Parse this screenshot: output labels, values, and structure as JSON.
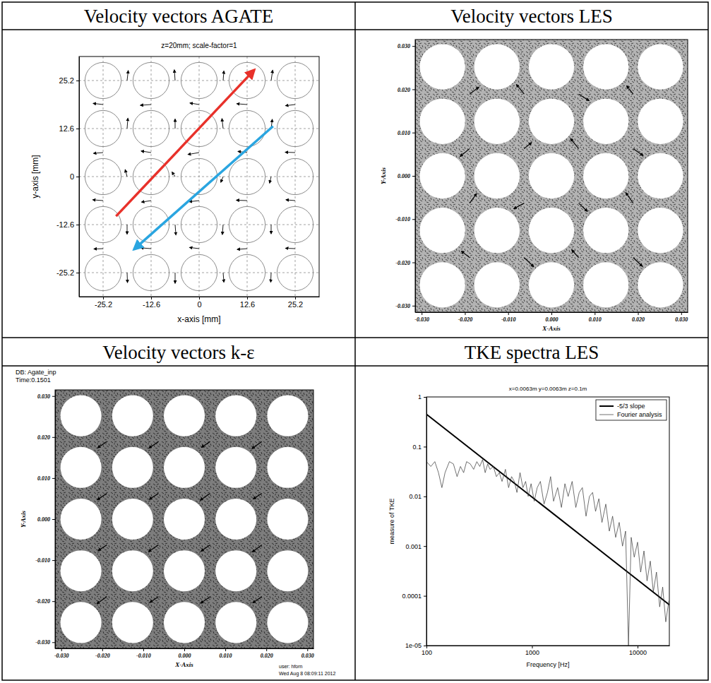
{
  "chart_data": [
    {
      "type": "vector_field",
      "title": "Velocity vectors AGATE",
      "subtitle": "z=20mm; scale-factor=1",
      "x_label": "x-axis [mm]",
      "y_label": "y-axis [mm]",
      "xlim": [
        -31.5,
        31.5
      ],
      "ylim": [
        -31.5,
        31.5
      ],
      "xticks": [
        -25.2,
        -12.6,
        0,
        12.6,
        25.2
      ],
      "yticks": [
        -25.2,
        -12.6,
        0,
        12.6,
        25.2
      ],
      "grid": true,
      "rods": {
        "x": [
          -25.2,
          -12.6,
          0,
          12.6,
          25.2,
          -25.2,
          -12.6,
          0,
          12.6,
          25.2,
          -25.2,
          -12.6,
          0,
          12.6,
          25.2,
          -25.2,
          -12.6,
          0,
          12.6,
          25.2,
          -25.2,
          -12.6,
          0,
          12.6,
          25.2
        ],
        "y": [
          25.2,
          25.2,
          25.2,
          25.2,
          25.2,
          12.6,
          12.6,
          12.6,
          12.6,
          12.6,
          0,
          0,
          0,
          0,
          0,
          -12.6,
          -12.6,
          -12.6,
          -12.6,
          -12.6,
          -25.2,
          -25.2,
          -25.2,
          -25.2,
          -25.2
        ],
        "diameter": 9.5
      },
      "vectors": {
        "x": [
          -18.9,
          -6.3,
          6.3,
          18.9,
          -18.9,
          -6.3,
          6.3,
          18.9,
          -18.9,
          -6.3,
          6.3,
          18.9,
          -18.9,
          -6.3,
          6.3,
          18.9,
          -18.9,
          -6.3,
          6.3,
          18.9,
          -25.2,
          -12.6,
          0,
          12.6,
          25.2,
          -25.2,
          -12.6,
          0,
          12.6,
          25.2,
          -25.2,
          -12.6,
          0,
          12.6,
          25.2,
          -25.2,
          -12.6,
          0,
          12.6,
          25.2
        ],
        "y": [
          25.2,
          25.2,
          25.2,
          25.2,
          12.6,
          12.6,
          12.6,
          12.6,
          0,
          0,
          0,
          0,
          -12.6,
          -12.6,
          -12.6,
          -12.6,
          -25.2,
          -25.2,
          -25.2,
          -25.2,
          18.9,
          18.9,
          18.9,
          18.9,
          18.9,
          6.3,
          6.3,
          6.3,
          6.3,
          6.3,
          -6.3,
          -6.3,
          -6.3,
          -6.3,
          -6.3,
          -18.9,
          -18.9,
          -18.9,
          -18.9,
          -18.9
        ],
        "u": [
          0.3,
          -0.2,
          0.2,
          0.4,
          0.2,
          0,
          -0.3,
          0.3,
          -0.5,
          -0.8,
          -0.6,
          -0.4,
          0,
          0.2,
          -0.2,
          0,
          0.1,
          0,
          0.2,
          -0.1,
          -2.6,
          -2.8,
          -2.4,
          -2.7,
          -2.5,
          -2.5,
          -2.6,
          -2.9,
          -2.4,
          -2.6,
          -2.7,
          -2.5,
          -2.6,
          -2.8,
          -2.4,
          -2.4,
          -2.7,
          -2.5,
          -2.6,
          -2.5
        ],
        "v": [
          2.6,
          2.8,
          2.5,
          2.7,
          2.7,
          2.5,
          2.6,
          2.4,
          1.8,
          1.2,
          -1.5,
          -1.7,
          -2.5,
          -2.7,
          -2.6,
          -2.4,
          -2.6,
          -2.8,
          -2.5,
          -2.5,
          0.3,
          -0.2,
          0.4,
          0.2,
          -0.3,
          -0.2,
          0.4,
          -0.5,
          0.3,
          0.1,
          0.2,
          -0.4,
          -0.3,
          0.1,
          0.2,
          -0.1,
          0.2,
          0.3,
          -0.2,
          0.1
        ]
      },
      "arrows": [
        {
          "x": [
            -21.8,
            14.5
          ],
          "y": [
            -10.4,
            28
          ],
          "color": "#e8312a"
        },
        {
          "x": [
            19.4,
            -17.1
          ],
          "y": [
            13.2,
            -19.1
          ],
          "color": "#2aa5e0"
        }
      ]
    },
    {
      "type": "vector_field",
      "title": "Velocity vectors LES",
      "x_label": "X-Axis",
      "y_label": "Y-Axis",
      "xlim": [
        -0.0315,
        0.0315
      ],
      "ylim": [
        -0.0315,
        0.0315
      ],
      "xticks": [
        {
          "value": -0.03,
          "label": "-0.030"
        },
        {
          "value": -0.02,
          "label": "-0.020"
        },
        {
          "value": -0.01,
          "label": "-0.010"
        },
        {
          "value": 0,
          "label": "0.000"
        },
        {
          "value": 0.01,
          "label": "0.010"
        },
        {
          "value": 0.02,
          "label": "0.020"
        },
        {
          "value": 0.03,
          "label": "0.030"
        }
      ],
      "yticks": [
        {
          "value": -0.03,
          "label": "-0.030"
        },
        {
          "value": -0.02,
          "label": "-0.020"
        },
        {
          "value": -0.01,
          "label": "-0.010"
        },
        {
          "value": 0,
          "label": "0.000"
        },
        {
          "value": 0.01,
          "label": "0.010"
        },
        {
          "value": 0.02,
          "label": "0.020"
        },
        {
          "value": 0.03,
          "label": "0.030"
        }
      ],
      "grid": false,
      "rods": {
        "x": [
          -0.0252,
          -0.0126,
          0,
          0.0126,
          0.0252,
          -0.0252,
          -0.0126,
          0,
          0.0126,
          0.0252,
          -0.0252,
          -0.0126,
          0,
          0.0126,
          0.0252,
          -0.0252,
          -0.0126,
          0,
          0.0126,
          0.0252,
          -0.0252,
          -0.0126,
          0,
          0.0126,
          0.0252
        ],
        "y": [
          0.0252,
          0.0252,
          0.0252,
          0.0252,
          0.0252,
          0.0126,
          0.0126,
          0.0126,
          0.0126,
          0.0126,
          0,
          0,
          0,
          0,
          0,
          -0.0126,
          -0.0126,
          -0.0126,
          -0.0126,
          -0.0126,
          -0.0252,
          -0.0252,
          -0.0252,
          -0.0252,
          -0.0252
        ],
        "diameter": 0.0105
      },
      "vectors": {
        "x": [
          -0.0189,
          -0.0063,
          0.0063,
          0.0189,
          -0.0189,
          -0.0063,
          0.0063,
          0.0189,
          -0.0189,
          -0.0063,
          0.0063,
          0.0189,
          -0.0189,
          -0.0063,
          0.0063,
          0.0189
        ],
        "y": [
          0.0189,
          0.0189,
          0.0189,
          0.0189,
          0.0063,
          0.0063,
          0.0063,
          0.0063,
          -0.0063,
          -0.0063,
          -0.0063,
          -0.0063,
          -0.0189,
          -0.0189,
          -0.0189,
          -0.0189
        ],
        "u": [
          0.0021,
          -0.0018,
          0.0024,
          -0.0015,
          -0.0022,
          0.0017,
          -0.0019,
          0.0023,
          0.0016,
          -0.0024,
          0.002,
          -0.0017,
          -0.0019,
          0.0022,
          -0.0016,
          0.0021
        ],
        "v": [
          0.0016,
          0.0022,
          -0.0015,
          0.0019,
          -0.0018,
          0.0014,
          0.0023,
          -0.0016,
          0.0022,
          -0.0013,
          -0.0019,
          0.0024,
          0.0015,
          -0.0021,
          0.0018,
          -0.002
        ]
      }
    },
    {
      "type": "vector_field",
      "title": "Velocity vectors k-ε",
      "x_label": "X-Axis",
      "y_label": "Y-Axis",
      "xlim": [
        -0.0315,
        0.0315
      ],
      "ylim": [
        -0.0315,
        0.0315
      ],
      "xticks": [
        {
          "value": -0.03,
          "label": "-0.030"
        },
        {
          "value": -0.02,
          "label": "-0.020"
        },
        {
          "value": -0.01,
          "label": "-0.010"
        },
        {
          "value": 0,
          "label": "0.000"
        },
        {
          "value": 0.01,
          "label": "0.010"
        },
        {
          "value": 0.02,
          "label": "0.020"
        },
        {
          "value": 0.03,
          "label": "0.030"
        }
      ],
      "yticks": [
        {
          "value": -0.03,
          "label": "-0.030"
        },
        {
          "value": -0.02,
          "label": "-0.020"
        },
        {
          "value": -0.01,
          "label": "-0.010"
        },
        {
          "value": 0,
          "label": "0.000"
        },
        {
          "value": 0.01,
          "label": "0.010"
        },
        {
          "value": 0.02,
          "label": "0.020"
        },
        {
          "value": 0.03,
          "label": "0.030"
        }
      ],
      "grid": false,
      "annotations": [
        "DB: Agate_inp",
        "Time:0.1501",
        "user: hforn",
        "Wed Aug 8 08:09:11 2012"
      ],
      "rods": {
        "x": [
          -0.0252,
          -0.0126,
          0,
          0.0126,
          0.0252,
          -0.0252,
          -0.0126,
          0,
          0.0126,
          0.0252,
          -0.0252,
          -0.0126,
          0,
          0.0126,
          0.0252,
          -0.0252,
          -0.0126,
          0,
          0.0126,
          0.0252,
          -0.0252,
          -0.0126,
          0,
          0.0126,
          0.0252
        ],
        "y": [
          0.0252,
          0.0252,
          0.0252,
          0.0252,
          0.0252,
          0.0126,
          0.0126,
          0.0126,
          0.0126,
          0.0126,
          0,
          0,
          0,
          0,
          0,
          -0.0126,
          -0.0126,
          -0.0126,
          -0.0126,
          -0.0126,
          -0.0252,
          -0.0252,
          -0.0252,
          -0.0252,
          -0.0252
        ],
        "diameter": 0.01
      },
      "vectors": {
        "x": [
          -0.0189,
          -0.0063,
          0.0063,
          0.0189,
          -0.0189,
          -0.0063,
          0.0063,
          0.0189,
          -0.0189,
          -0.0063,
          0.0063,
          0.0189,
          -0.0189,
          -0.0063,
          0.0063,
          0.0189
        ],
        "y": [
          0.0189,
          0.0189,
          0.0189,
          0.0189,
          0.0063,
          0.0063,
          0.0063,
          0.0063,
          -0.0063,
          -0.0063,
          -0.0063,
          -0.0063,
          -0.0189,
          -0.0189,
          -0.0189,
          -0.0189
        ],
        "u": [
          -0.0022,
          -0.0023,
          -0.0021,
          -0.0024,
          -0.0023,
          -0.0022,
          -0.0024,
          -0.0021,
          -0.0021,
          -0.0024,
          -0.0022,
          -0.0023,
          -0.0024,
          -0.0021,
          -0.0023,
          -0.0022
        ],
        "v": [
          -0.0015,
          -0.0016,
          -0.0014,
          -0.0017,
          -0.0016,
          -0.0015,
          -0.0017,
          -0.0014,
          -0.0014,
          -0.0016,
          -0.0015,
          -0.0017,
          -0.0017,
          -0.0014,
          -0.0016,
          -0.0015
        ]
      }
    },
    {
      "type": "line",
      "title": "TKE spectra LES",
      "subtitle": "x=0.0063m y=0.0063m z=0.1m",
      "x_label": "Frequency [Hz]",
      "y_label": "measure of TKE",
      "log": true,
      "xlim": [
        100,
        20000
      ],
      "ylim": [
        1e-05,
        1
      ],
      "xticks": [
        100,
        1000,
        10000
      ],
      "yticks": [
        {
          "value": 1e-05,
          "label": "1e-05"
        },
        0.0001,
        0.001,
        0.01,
        0.1,
        1
      ],
      "legend": "top-right",
      "series": [
        {
          "name": "-5/3 slope",
          "color": "#000000",
          "line_style": "solid",
          "x": [
            100,
            20000
          ],
          "values": [
            0.45,
            6.6e-05
          ]
        },
        {
          "name": "Fourier analysis",
          "color": "#333333",
          "line_style": "solid",
          "x": [
            100,
            110,
            120,
            130,
            140,
            150,
            165,
            180,
            195,
            210,
            225,
            240,
            260,
            280,
            300,
            320,
            340,
            360,
            380,
            400,
            430,
            460,
            490,
            520,
            560,
            600,
            640,
            680,
            720,
            770,
            820,
            870,
            920,
            980,
            1050,
            1120,
            1200,
            1300,
            1400,
            1500,
            1600,
            1750,
            1900,
            2050,
            2200,
            2400,
            2600,
            2800,
            3000,
            3250,
            3500,
            3750,
            4000,
            4300,
            4600,
            5000,
            5400,
            5800,
            6200,
            6700,
            7200,
            7700,
            8200,
            8700,
            9300,
            10000,
            10700,
            11500,
            12300,
            13200,
            14100,
            15100,
            16200,
            17300,
            18500,
            19800
          ],
          "values": [
            0.05,
            0.04,
            0.05,
            0.03,
            0.015,
            0.03,
            0.05,
            0.045,
            0.025,
            0.04,
            0.03,
            0.05,
            0.045,
            0.035,
            0.05,
            0.04,
            0.055,
            0.03,
            0.045,
            0.035,
            0.04,
            0.025,
            0.03,
            0.02,
            0.035,
            0.015,
            0.025,
            0.02,
            0.012,
            0.03,
            0.015,
            0.02,
            0.01,
            0.018,
            0.008,
            0.015,
            0.02,
            0.007,
            0.012,
            0.025,
            0.008,
            0.015,
            0.006,
            0.018,
            0.01,
            0.02,
            0.006,
            0.012,
            0.015,
            0.004,
            0.01,
            0.012,
            0.005,
            0.009,
            0.003,
            0.007,
            0.002,
            0.004,
            0.0015,
            0.003,
            0.001,
            0.002,
            1e-05,
            0.0015,
            0.0006,
            0.0012,
            0.0003,
            0.0008,
            0.0002,
            0.0005,
            0.00012,
            0.0003,
            6e-05,
            0.00015,
            3e-05,
            8e-05
          ]
        }
      ]
    }
  ]
}
